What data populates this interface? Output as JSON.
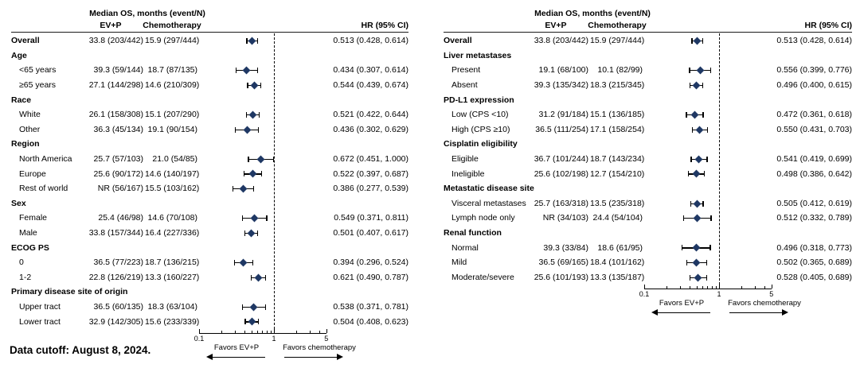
{
  "figure": {
    "footer": "Data cutoff: August 8, 2024."
  },
  "colors": {
    "marker": "#1f3864",
    "line": "#000000"
  },
  "chart_data": [
    {
      "type": "forest",
      "title_col": "Median OS, months (event/N)",
      "col_headers": {
        "evp": "EV+P",
        "chemo": "Chemotherapy",
        "hr": "HR (95% CI)"
      },
      "axis": {
        "scale": "log",
        "range": [
          0.1,
          5
        ],
        "ref_line": 1,
        "ticks_labeled": [
          0.1,
          1,
          5
        ],
        "minor_ticks": [
          0.2,
          0.3,
          0.4,
          0.5,
          0.6,
          0.7,
          0.8,
          0.9,
          2,
          3,
          4
        ],
        "left_label": "Favors EV+P",
        "right_label": "Favors chemotherapy"
      },
      "rows": [
        {
          "type": "data",
          "bold": true,
          "label": "Overall",
          "evp": "33.8 (203/442)",
          "chemo": "15.9 (297/444)",
          "hr": 0.513,
          "lo": 0.428,
          "hi": 0.614,
          "hr_text": "0.513 (0.428, 0.614)"
        },
        {
          "type": "group",
          "label": "Age"
        },
        {
          "type": "data",
          "label": "<65 years",
          "evp": "39.3 (59/144)",
          "chemo": "18.7 (87/135)",
          "hr": 0.434,
          "lo": 0.307,
          "hi": 0.614,
          "hr_text": "0.434 (0.307, 0.614)"
        },
        {
          "type": "data",
          "label": "≥65 years",
          "evp": "27.1 (144/298)",
          "chemo": "14.6 (210/309)",
          "hr": 0.544,
          "lo": 0.439,
          "hi": 0.674,
          "hr_text": "0.544 (0.439, 0.674)"
        },
        {
          "type": "group",
          "label": "Race"
        },
        {
          "type": "data",
          "label": "White",
          "evp": "26.1 (158/308)",
          "chemo": "15.1 (207/290)",
          "hr": 0.521,
          "lo": 0.422,
          "hi": 0.644,
          "hr_text": "0.521 (0.422, 0.644)"
        },
        {
          "type": "data",
          "label": "Other",
          "evp": "36.3 (45/134)",
          "chemo": "19.1 (90/154)",
          "hr": 0.436,
          "lo": 0.302,
          "hi": 0.629,
          "hr_text": "0.436 (0.302, 0.629)"
        },
        {
          "type": "group",
          "label": "Region"
        },
        {
          "type": "data",
          "label": "North America",
          "evp": "25.7 (57/103)",
          "chemo": "21.0 (54/85)",
          "hr": 0.672,
          "lo": 0.451,
          "hi": 1.0,
          "hr_text": "0.672 (0.451, 1.000)"
        },
        {
          "type": "data",
          "label": "Europe",
          "evp": "25.6 (90/172)",
          "chemo": "14.6 (140/197)",
          "hr": 0.522,
          "lo": 0.397,
          "hi": 0.687,
          "hr_text": "0.522 (0.397, 0.687)"
        },
        {
          "type": "data",
          "label": "Rest of world",
          "evp": "NR (56/167)",
          "chemo": "15.5 (103/162)",
          "hr": 0.386,
          "lo": 0.277,
          "hi": 0.539,
          "hr_text": "0.386 (0.277, 0.539)"
        },
        {
          "type": "group",
          "label": "Sex"
        },
        {
          "type": "data",
          "label": "Female",
          "evp": "25.4 (46/98)",
          "chemo": "14.6 (70/108)",
          "hr": 0.549,
          "lo": 0.371,
          "hi": 0.811,
          "hr_text": "0.549 (0.371, 0.811)"
        },
        {
          "type": "data",
          "label": "Male",
          "evp": "33.8 (157/344)",
          "chemo": "16.4 (227/336)",
          "hr": 0.501,
          "lo": 0.407,
          "hi": 0.617,
          "hr_text": "0.501 (0.407, 0.617)"
        },
        {
          "type": "group",
          "label": "ECOG PS"
        },
        {
          "type": "data",
          "label": "0",
          "evp": "36.5 (77/223)",
          "chemo": "18.7 (136/215)",
          "hr": 0.394,
          "lo": 0.296,
          "hi": 0.524,
          "hr_text": "0.394 (0.296, 0.524)"
        },
        {
          "type": "data",
          "label": "1-2",
          "evp": "22.8 (126/219)",
          "chemo": "13.3 (160/227)",
          "hr": 0.621,
          "lo": 0.49,
          "hi": 0.787,
          "hr_text": "0.621 (0.490, 0.787)"
        },
        {
          "type": "group",
          "label": "Primary disease site of origin"
        },
        {
          "type": "data",
          "label": "Upper tract",
          "evp": "36.5 (60/135)",
          "chemo": "18.3 (63/104)",
          "hr": 0.538,
          "lo": 0.371,
          "hi": 0.781,
          "hr_text": "0.538 (0.371, 0.781)"
        },
        {
          "type": "data",
          "label": "Lower tract",
          "evp": "32.9 (142/305)",
          "chemo": "15.6 (233/339)",
          "hr": 0.504,
          "lo": 0.408,
          "hi": 0.623,
          "hr_text": "0.504 (0.408, 0.623)"
        }
      ]
    },
    {
      "type": "forest",
      "title_col": "Median OS, months (event/N)",
      "col_headers": {
        "evp": "EV+P",
        "chemo": "Chemotherapy",
        "hr": "HR (95% CI)"
      },
      "axis": {
        "scale": "log",
        "range": [
          0.1,
          5
        ],
        "ref_line": 1,
        "ticks_labeled": [
          0.1,
          1,
          5
        ],
        "minor_ticks": [
          0.2,
          0.3,
          0.4,
          0.5,
          0.6,
          0.7,
          0.8,
          0.9,
          2,
          3,
          4
        ],
        "left_label": "Favors EV+P",
        "right_label": "Favors chemotherapy"
      },
      "rows": [
        {
          "type": "data",
          "bold": true,
          "label": "Overall",
          "evp": "33.8 (203/442)",
          "chemo": "15.9 (297/444)",
          "hr": 0.513,
          "lo": 0.428,
          "hi": 0.614,
          "hr_text": "0.513 (0.428, 0.614)"
        },
        {
          "type": "group",
          "label": "Liver metastases"
        },
        {
          "type": "data",
          "label": "Present",
          "evp": "19.1 (68/100)",
          "chemo": "10.1 (82/99)",
          "hr": 0.556,
          "lo": 0.399,
          "hi": 0.776,
          "hr_text": "0.556 (0.399, 0.776)"
        },
        {
          "type": "data",
          "label": "Absent",
          "evp": "39.3 (135/342)",
          "chemo": "18.3 (215/345)",
          "hr": 0.496,
          "lo": 0.4,
          "hi": 0.615,
          "hr_text": "0.496 (0.400, 0.615)"
        },
        {
          "type": "group",
          "label": "PD-L1 expression"
        },
        {
          "type": "data",
          "label": "Low (CPS <10)",
          "evp": "31.2 (91/184)",
          "chemo": "15.1 (136/185)",
          "hr": 0.472,
          "lo": 0.361,
          "hi": 0.618,
          "hr_text": "0.472 (0.361, 0.618)"
        },
        {
          "type": "data",
          "label": "High (CPS ≥10)",
          "evp": "36.5 (111/254)",
          "chemo": "17.1 (158/254)",
          "hr": 0.55,
          "lo": 0.431,
          "hi": 0.703,
          "hr_text": "0.550 (0.431, 0.703)"
        },
        {
          "type": "group",
          "label": "Cisplatin eligibility"
        },
        {
          "type": "data",
          "label": "Eligible",
          "evp": "36.7 (101/244)",
          "chemo": "18.7 (143/234)",
          "hr": 0.541,
          "lo": 0.419,
          "hi": 0.699,
          "hr_text": "0.541 (0.419, 0.699)"
        },
        {
          "type": "data",
          "label": "Ineligible",
          "evp": "25.6 (102/198)",
          "chemo": "12.7 (154/210)",
          "hr": 0.498,
          "lo": 0.386,
          "hi": 0.642,
          "hr_text": "0.498 (0.386, 0.642)"
        },
        {
          "type": "group",
          "label": "Metastatic disease site"
        },
        {
          "type": "data",
          "label": "Visceral metastases",
          "evp": "25.7 (163/318)",
          "chemo": "13.5 (235/318)",
          "hr": 0.505,
          "lo": 0.412,
          "hi": 0.619,
          "hr_text": "0.505 (0.412, 0.619)"
        },
        {
          "type": "data",
          "label": "Lymph node only",
          "evp": "NR (34/103)",
          "chemo": "24.4 (54/104)",
          "hr": 0.512,
          "lo": 0.332,
          "hi": 0.789,
          "hr_text": "0.512 (0.332, 0.789)"
        },
        {
          "type": "group",
          "label": "Renal function"
        },
        {
          "type": "data",
          "label": "Normal",
          "evp": "39.3 (33/84)",
          "chemo": "18.6 (61/95)",
          "hr": 0.496,
          "lo": 0.318,
          "hi": 0.773,
          "hr_text": "0.496 (0.318, 0.773)"
        },
        {
          "type": "data",
          "label": "Mild",
          "evp": "36.5 (69/165)",
          "chemo": "18.4 (101/162)",
          "hr": 0.502,
          "lo": 0.365,
          "hi": 0.689,
          "hr_text": "0.502 (0.365, 0.689)"
        },
        {
          "type": "data",
          "label": "Moderate/severe",
          "evp": "25.6 (101/193)",
          "chemo": "13.3 (135/187)",
          "hr": 0.528,
          "lo": 0.405,
          "hi": 0.689,
          "hr_text": "0.528 (0.405, 0.689)"
        }
      ]
    }
  ]
}
